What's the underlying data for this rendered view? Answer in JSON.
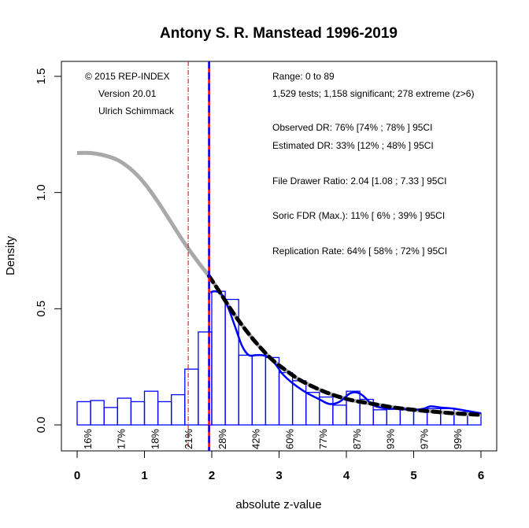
{
  "chart_data": {
    "type": "bar",
    "title": "Antony S. R. Manstead 1996-2019",
    "xlabel": "absolute z-value",
    "ylabel": "Density",
    "xlim": [
      0,
      6
    ],
    "ylim": [
      0,
      1.5
    ],
    "x_ticks": [
      "0",
      "1",
      "2",
      "3",
      "4",
      "5",
      "6"
    ],
    "y_ticks": [
      "0.0",
      "0.5",
      "1.0",
      "1.5"
    ],
    "grid": false,
    "bin_width": 0.2,
    "histogram": {
      "bin_starts": [
        0.0,
        0.2,
        0.4,
        0.6,
        0.8,
        1.0,
        1.2,
        1.4,
        1.6,
        1.8,
        2.0,
        2.2,
        2.4,
        2.6,
        2.8,
        3.0,
        3.2,
        3.4,
        3.6,
        3.8,
        4.0,
        4.2,
        4.4,
        4.6,
        4.8,
        5.0,
        5.2,
        5.4,
        5.6,
        5.8
      ],
      "density": [
        0.1,
        0.105,
        0.075,
        0.115,
        0.1,
        0.145,
        0.1,
        0.13,
        0.24,
        0.4,
        0.575,
        0.54,
        0.3,
        0.3,
        0.29,
        0.225,
        0.19,
        0.14,
        0.12,
        0.085,
        0.145,
        0.11,
        0.065,
        0.07,
        0.07,
        0.06,
        0.07,
        0.07,
        0.055,
        0.05
      ],
      "color": "#0000ff"
    },
    "percent_labels": [
      {
        "x": 0.15,
        "label": "16%"
      },
      {
        "x": 0.65,
        "label": "17%"
      },
      {
        "x": 1.15,
        "label": "18%"
      },
      {
        "x": 1.65,
        "label": "21%"
      },
      {
        "x": 2.15,
        "label": "28%"
      },
      {
        "x": 2.65,
        "label": "42%"
      },
      {
        "x": 3.15,
        "label": "60%"
      },
      {
        "x": 3.65,
        "label": "77%"
      },
      {
        "x": 4.15,
        "label": "87%"
      },
      {
        "x": 4.65,
        "label": "93%"
      },
      {
        "x": 5.15,
        "label": "97%"
      },
      {
        "x": 5.65,
        "label": "99%"
      }
    ],
    "series": [
      {
        "name": "model-curve-gray",
        "color": "#a9a9a9",
        "style": "solid-thick",
        "x": [
          0.0,
          0.2,
          0.4,
          0.6,
          0.8,
          1.0,
          1.2,
          1.4,
          1.6,
          1.8,
          1.96,
          2.1,
          2.3,
          2.5,
          2.7,
          2.9,
          3.1,
          3.3,
          3.5,
          3.7,
          3.9,
          4.1,
          4.3,
          4.5,
          4.7,
          4.9,
          5.1,
          5.3,
          5.5,
          5.7,
          5.9,
          6.0
        ],
        "y": [
          1.17,
          1.17,
          1.16,
          1.14,
          1.1,
          1.04,
          0.96,
          0.87,
          0.78,
          0.7,
          0.64,
          0.58,
          0.49,
          0.41,
          0.34,
          0.28,
          0.235,
          0.195,
          0.165,
          0.14,
          0.12,
          0.105,
          0.095,
          0.085,
          0.075,
          0.068,
          0.062,
          0.057,
          0.052,
          0.048,
          0.045,
          0.043
        ]
      },
      {
        "name": "fit-curve-black-dashed",
        "color": "#000000",
        "style": "dashed-thick",
        "x": [
          1.96,
          2.1,
          2.3,
          2.5,
          2.7,
          2.9,
          3.1,
          3.3,
          3.5,
          3.7,
          3.9,
          4.1,
          4.3,
          4.5,
          4.7,
          4.9,
          5.1,
          5.3,
          5.5,
          5.7,
          5.9,
          6.0
        ],
        "y": [
          0.64,
          0.58,
          0.49,
          0.41,
          0.34,
          0.28,
          0.235,
          0.195,
          0.165,
          0.14,
          0.12,
          0.105,
          0.095,
          0.085,
          0.075,
          0.068,
          0.062,
          0.057,
          0.052,
          0.048,
          0.045,
          0.043
        ]
      },
      {
        "name": "density-curve-blue",
        "color": "#0000ff",
        "style": "solid",
        "x": [
          1.98,
          2.05,
          2.15,
          2.25,
          2.35,
          2.45,
          2.55,
          2.65,
          2.75,
          2.85,
          2.95,
          3.05,
          3.2,
          3.4,
          3.6,
          3.75,
          3.9,
          4.05,
          4.15,
          4.25,
          4.4,
          4.6,
          4.8,
          5.0,
          5.15,
          5.25,
          5.4,
          5.6,
          5.8,
          6.0
        ],
        "y": [
          0.57,
          0.575,
          0.56,
          0.5,
          0.42,
          0.34,
          0.3,
          0.3,
          0.3,
          0.29,
          0.26,
          0.22,
          0.18,
          0.14,
          0.11,
          0.09,
          0.1,
          0.135,
          0.14,
          0.125,
          0.085,
          0.07,
          0.07,
          0.065,
          0.07,
          0.08,
          0.075,
          0.07,
          0.06,
          0.05
        ]
      }
    ],
    "vlines": [
      {
        "name": "significance-threshold",
        "x": 1.96,
        "color": "#ff0000",
        "style": "solid"
      },
      {
        "name": "significance-threshold-blue",
        "x": 1.96,
        "color": "#0000ff",
        "style": "dashed"
      },
      {
        "name": "marginal-threshold",
        "x": 1.65,
        "color": "#cc0000",
        "style": "dotdash"
      }
    ],
    "annotations_left": [
      "© 2015 REP-INDEX",
      "Version 20.01",
      "Ulrich Schimmack"
    ],
    "annotations_right": [
      "Range: 0 to 89",
      "1,529 tests; 1,158 significant; 278 extreme (z>6)",
      "Observed DR: 76% [74% ; 78% ] 95CI",
      "Estimated DR: 33% [12% ; 48% ] 95CI",
      "File Drawer Ratio: 2.04 [1.08 ; 7.33 ] 95CI",
      "Soric FDR (Max.): 11% [ 6% ; 39% ] 95CI",
      "Replication Rate: 64% [ 58% ; 72% ] 95CI"
    ]
  }
}
